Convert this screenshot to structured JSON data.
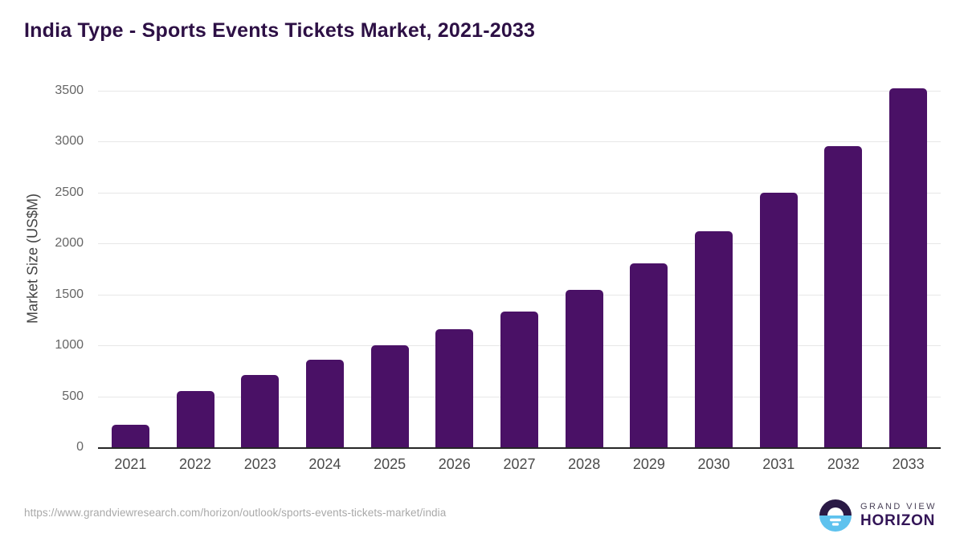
{
  "header": {
    "title": "India Type - Sports Events Tickets Market, 2021-2033"
  },
  "chart_data": {
    "type": "bar",
    "title": "India Type - Sports Events Tickets Market, 2021-2033",
    "categories": [
      "2021",
      "2022",
      "2023",
      "2024",
      "2025",
      "2026",
      "2027",
      "2028",
      "2029",
      "2030",
      "2031",
      "2032",
      "2033"
    ],
    "values": [
      220,
      550,
      710,
      860,
      1000,
      1155,
      1335,
      1545,
      1805,
      2120,
      2500,
      2960,
      3520
    ],
    "xlabel": "",
    "ylabel": "Market Size (US$M)",
    "ylim": [
      0,
      3500
    ],
    "yticks": [
      0,
      500,
      1000,
      1500,
      2000,
      2500,
      3000,
      3500
    ],
    "grid": "horizontal",
    "legend": false,
    "bar_color": "#4a1166"
  },
  "footer": {
    "source_url": "https://www.grandviewresearch.com/horizon/outlook/sports-events-tickets-market/india",
    "logo": {
      "line1": "GRAND VIEW",
      "line2": "HORIZON"
    }
  },
  "colors": {
    "bar": "#4a1166",
    "title_text": "#2d1045",
    "axis_line": "#262626",
    "gridline": "#e7e7e7",
    "xtick_text": "#4a4a4a",
    "ytick_text": "#666666",
    "source_text": "#a9a9a9",
    "logo_circle_dark": "#2a1a45",
    "logo_circle_blue": "#5ec2ee",
    "logo_text_dark": "#331557",
    "logo_text_gray": "#494157"
  }
}
